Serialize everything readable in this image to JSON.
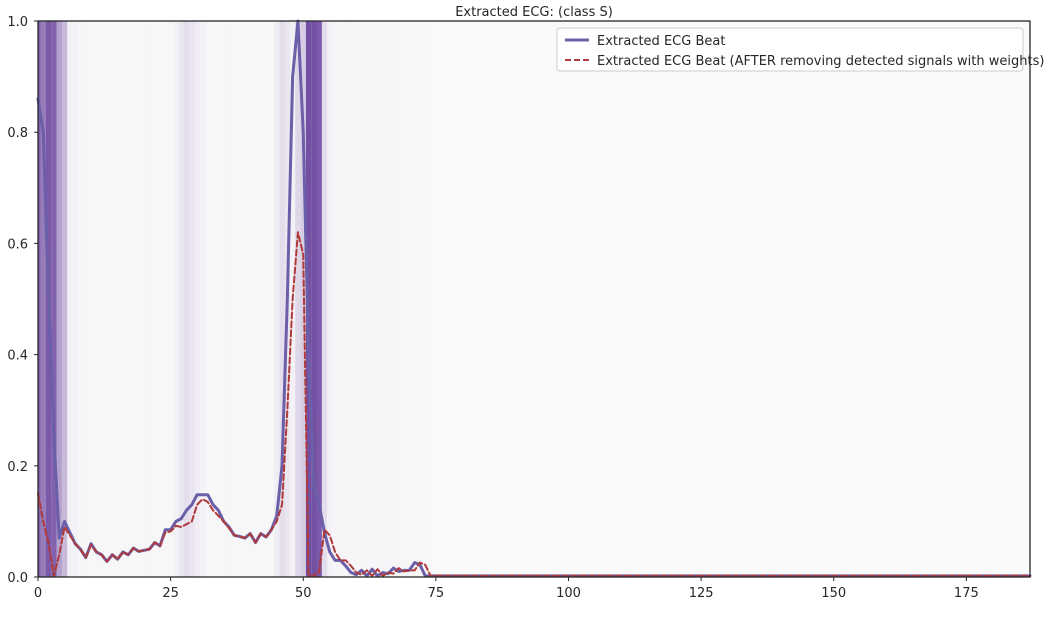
{
  "chart_data": {
    "type": "line",
    "title": "Extracted ECG: (class S)",
    "xlabel": "",
    "ylabel": "",
    "xlim": [
      0,
      187
    ],
    "ylim": [
      0,
      1.0
    ],
    "x_ticks": [
      0,
      25,
      50,
      75,
      100,
      125,
      150,
      175
    ],
    "y_ticks": [
      0.0,
      0.2,
      0.4,
      0.6,
      0.8,
      1.0
    ],
    "x_tick_labels": [
      "0",
      "25",
      "50",
      "75",
      "100",
      "125",
      "150",
      "175"
    ],
    "y_tick_labels": [
      "0.0",
      "0.2",
      "0.4",
      "0.6",
      "0.8",
      "1.0"
    ],
    "grid": false,
    "legend_position": "top-right",
    "colors": {
      "beat": "#6a5fa8",
      "after": "#b03a3a",
      "weight_scale": "#54278f",
      "background": "#fafafa",
      "axes": "#262626"
    },
    "series": [
      {
        "name": "Extracted ECG Beat",
        "style": "solid",
        "x": [
          0,
          1,
          2,
          3,
          4,
          5,
          6,
          7,
          8,
          9,
          10,
          11,
          12,
          13,
          14,
          15,
          16,
          17,
          18,
          19,
          20,
          21,
          22,
          23,
          24,
          25,
          26,
          27,
          28,
          29,
          30,
          31,
          32,
          33,
          34,
          35,
          36,
          37,
          38,
          39,
          40,
          41,
          42,
          43,
          44,
          45,
          46,
          47,
          48,
          49,
          50,
          51,
          52,
          53,
          54,
          55,
          56,
          57,
          58,
          59,
          60,
          61,
          62,
          63,
          64,
          65,
          66,
          67,
          68,
          69,
          70,
          71,
          72,
          73,
          74,
          75,
          100,
          125,
          150,
          175,
          187
        ],
        "values": [
          0.86,
          0.8,
          0.5,
          0.25,
          0.07,
          0.1,
          0.08,
          0.06,
          0.05,
          0.035,
          0.06,
          0.045,
          0.04,
          0.028,
          0.04,
          0.032,
          0.045,
          0.04,
          0.052,
          0.046,
          0.048,
          0.05,
          0.062,
          0.056,
          0.085,
          0.085,
          0.1,
          0.105,
          0.12,
          0.13,
          0.148,
          0.148,
          0.148,
          0.13,
          0.12,
          0.1,
          0.09,
          0.075,
          0.073,
          0.07,
          0.078,
          0.062,
          0.078,
          0.072,
          0.085,
          0.11,
          0.2,
          0.5,
          0.9,
          1.0,
          0.8,
          0.4,
          0.16,
          0.13,
          0.08,
          0.045,
          0.03,
          0.03,
          0.02,
          0.008,
          0.004,
          0.012,
          0.002,
          0.014,
          0.002,
          0.008,
          0.006,
          0.016,
          0.01,
          0.012,
          0.012,
          0.026,
          0.022,
          0.002,
          0.002,
          0.002,
          0.002,
          0.002,
          0.002,
          0.002,
          0.002
        ]
      },
      {
        "name": "Extracted ECG Beat (AFTER removing detected signals with weights)",
        "style": "dashed",
        "x": [
          0,
          1,
          2,
          3,
          4,
          5,
          6,
          7,
          8,
          9,
          10,
          11,
          12,
          13,
          14,
          15,
          16,
          17,
          18,
          19,
          20,
          21,
          22,
          23,
          24,
          25,
          26,
          27,
          28,
          29,
          30,
          31,
          32,
          33,
          34,
          35,
          36,
          37,
          38,
          39,
          40,
          41,
          42,
          43,
          44,
          45,
          46,
          47,
          48,
          49,
          50,
          51,
          52,
          53,
          54,
          55,
          56,
          57,
          58,
          59,
          60,
          61,
          62,
          63,
          64,
          65,
          66,
          67,
          68,
          69,
          70,
          71,
          72,
          73,
          74,
          75,
          100,
          125,
          150,
          175,
          187
        ],
        "values": [
          0.15,
          0.1,
          0.06,
          0.002,
          0.04,
          0.09,
          0.075,
          0.06,
          0.05,
          0.035,
          0.058,
          0.045,
          0.04,
          0.028,
          0.04,
          0.032,
          0.045,
          0.04,
          0.052,
          0.046,
          0.048,
          0.05,
          0.062,
          0.056,
          0.08,
          0.082,
          0.092,
          0.09,
          0.095,
          0.1,
          0.13,
          0.14,
          0.135,
          0.12,
          0.11,
          0.1,
          0.088,
          0.075,
          0.073,
          0.07,
          0.078,
          0.062,
          0.078,
          0.072,
          0.085,
          0.1,
          0.13,
          0.3,
          0.5,
          0.62,
          0.58,
          0.002,
          0.002,
          0.01,
          0.085,
          0.075,
          0.045,
          0.03,
          0.03,
          0.02,
          0.008,
          0.004,
          0.012,
          0.002,
          0.014,
          0.002,
          0.008,
          0.006,
          0.016,
          0.01,
          0.012,
          0.012,
          0.026,
          0.022,
          0.002,
          0.002,
          0.002,
          0.002,
          0.002,
          0.002,
          0.002
        ]
      }
    ],
    "weight_bands": {
      "start": 0,
      "weights": [
        0.85,
        0.7,
        0.9,
        0.85,
        0.5,
        0.35,
        0.05,
        0.04,
        0.03,
        0.03,
        0.02,
        0.02,
        0.02,
        0.02,
        0.02,
        0.02,
        0.02,
        0.02,
        0.02,
        0.02,
        0.02,
        0.02,
        0.02,
        0.02,
        0.02,
        0.02,
        0.05,
        0.1,
        0.15,
        0.12,
        0.08,
        0.04,
        0.02,
        0.02,
        0.02,
        0.02,
        0.02,
        0.02,
        0.02,
        0.02,
        0.02,
        0.02,
        0.02,
        0.02,
        0.02,
        0.08,
        0.15,
        0.1,
        0.05,
        0.2,
        0.25,
        0.95,
        0.95,
        0.9,
        0.15,
        0.04,
        0.03,
        0.03,
        0.03,
        0.03,
        0.03,
        0.03,
        0.03,
        0.03,
        0.03,
        0.03,
        0.03,
        0.03,
        0.02,
        0.02,
        0.02,
        0.02,
        0.02,
        0.02,
        0.02
      ]
    }
  }
}
